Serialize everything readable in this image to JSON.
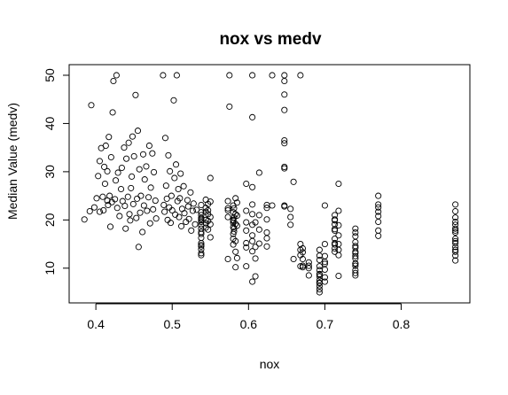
{
  "chart_data": {
    "type": "scatter",
    "title": "nox vs medv",
    "xlabel": "nox",
    "ylabel": "Median Value (medv)",
    "xlim": [
      0.365,
      0.89
    ],
    "ylim": [
      2.8,
      52.2
    ],
    "x_ticks": [
      0.4,
      0.5,
      0.6,
      0.7,
      0.8
    ],
    "x_tick_labels": [
      "0.4",
      "0.5",
      "0.6",
      "0.7",
      "0.8"
    ],
    "y_ticks": [
      10,
      20,
      30,
      40,
      50
    ],
    "y_tick_labels": [
      "10",
      "20",
      "30",
      "40",
      "50"
    ],
    "marker": "open-circle",
    "grid": false,
    "legend": "none",
    "points": [
      [
        0.385,
        20.1
      ],
      [
        0.392,
        21.8
      ],
      [
        0.394,
        43.8
      ],
      [
        0.398,
        22.6
      ],
      [
        0.401,
        24.5
      ],
      [
        0.403,
        29.1
      ],
      [
        0.405,
        32.2
      ],
      [
        0.405,
        21.7
      ],
      [
        0.407,
        34.9
      ],
      [
        0.409,
        24.8
      ],
      [
        0.41,
        22.0
      ],
      [
        0.411,
        31.0
      ],
      [
        0.412,
        27.5
      ],
      [
        0.413,
        35.4
      ],
      [
        0.415,
        24.0
      ],
      [
        0.415,
        30.1
      ],
      [
        0.416,
        23.1
      ],
      [
        0.417,
        37.2
      ],
      [
        0.418,
        25.0
      ],
      [
        0.419,
        18.6
      ],
      [
        0.42,
        33.0
      ],
      [
        0.421,
        23.7
      ],
      [
        0.422,
        42.3
      ],
      [
        0.423,
        48.8
      ],
      [
        0.425,
        24.3
      ],
      [
        0.426,
        28.2
      ],
      [
        0.427,
        50.0
      ],
      [
        0.428,
        22.5
      ],
      [
        0.429,
        29.8
      ],
      [
        0.431,
        20.8
      ],
      [
        0.433,
        26.4
      ],
      [
        0.434,
        30.8
      ],
      [
        0.435,
        23.9
      ],
      [
        0.437,
        35.0
      ],
      [
        0.438,
        22.9
      ],
      [
        0.439,
        18.2
      ],
      [
        0.44,
        32.7
      ],
      [
        0.442,
        24.8
      ],
      [
        0.443,
        36.0
      ],
      [
        0.444,
        21.2
      ],
      [
        0.445,
        19.9
      ],
      [
        0.446,
        26.6
      ],
      [
        0.447,
        29.0
      ],
      [
        0.448,
        37.3
      ],
      [
        0.449,
        23.3
      ],
      [
        0.45,
        33.2
      ],
      [
        0.452,
        45.9
      ],
      [
        0.453,
        20.4
      ],
      [
        0.454,
        24.4
      ],
      [
        0.455,
        38.5
      ],
      [
        0.456,
        14.4
      ],
      [
        0.457,
        30.5
      ],
      [
        0.458,
        21.5
      ],
      [
        0.459,
        25.0
      ],
      [
        0.461,
        17.5
      ],
      [
        0.462,
        33.6
      ],
      [
        0.463,
        23.0
      ],
      [
        0.464,
        28.4
      ],
      [
        0.466,
        31.1
      ],
      [
        0.467,
        21.9
      ],
      [
        0.469,
        24.7
      ],
      [
        0.47,
        35.4
      ],
      [
        0.471,
        19.3
      ],
      [
        0.472,
        26.7
      ],
      [
        0.474,
        33.8
      ],
      [
        0.475,
        22.2
      ],
      [
        0.476,
        29.9
      ],
      [
        0.478,
        24.0
      ],
      [
        0.479,
        20.3
      ],
      [
        0.488,
        50.0
      ],
      [
        0.489,
        23.1
      ],
      [
        0.49,
        21.7
      ],
      [
        0.491,
        37.0
      ],
      [
        0.492,
        27.1
      ],
      [
        0.493,
        24.4
      ],
      [
        0.494,
        20.0
      ],
      [
        0.495,
        33.4
      ],
      [
        0.496,
        22.6
      ],
      [
        0.497,
        30.1
      ],
      [
        0.498,
        19.4
      ],
      [
        0.499,
        25.0
      ],
      [
        0.5,
        22.0
      ],
      [
        0.502,
        44.8
      ],
      [
        0.503,
        28.7
      ],
      [
        0.504,
        21.1
      ],
      [
        0.505,
        31.5
      ],
      [
        0.506,
        50.0
      ],
      [
        0.507,
        23.9
      ],
      [
        0.508,
        26.4
      ],
      [
        0.509,
        20.6
      ],
      [
        0.51,
        24.5
      ],
      [
        0.511,
        29.6
      ],
      [
        0.512,
        18.7
      ],
      [
        0.513,
        22.3
      ],
      [
        0.515,
        27.0
      ],
      [
        0.516,
        21.4
      ],
      [
        0.518,
        19.6
      ],
      [
        0.52,
        24.1
      ],
      [
        0.521,
        22.8
      ],
      [
        0.522,
        20.2
      ],
      [
        0.524,
        25.7
      ],
      [
        0.525,
        17.8
      ],
      [
        0.527,
        21.9
      ],
      [
        0.528,
        23.4
      ],
      [
        0.53,
        19.1
      ],
      [
        0.532,
        22.1
      ],
      [
        0.538,
        21.6
      ],
      [
        0.538,
        18.2
      ],
      [
        0.538,
        15.2
      ],
      [
        0.538,
        19.9
      ],
      [
        0.538,
        13.1
      ],
      [
        0.538,
        14.5
      ],
      [
        0.538,
        20.4
      ],
      [
        0.538,
        17.5
      ],
      [
        0.538,
        12.7
      ],
      [
        0.538,
        16.3
      ],
      [
        0.538,
        23.1
      ],
      [
        0.538,
        19.6
      ],
      [
        0.538,
        14.8
      ],
      [
        0.538,
        21.0
      ],
      [
        0.538,
        18.9
      ],
      [
        0.538,
        13.9
      ],
      [
        0.538,
        20.2
      ],
      [
        0.538,
        17.1
      ],
      [
        0.544,
        22.5
      ],
      [
        0.544,
        20.0
      ],
      [
        0.544,
        18.4
      ],
      [
        0.544,
        21.7
      ],
      [
        0.544,
        24.2
      ],
      [
        0.544,
        19.3
      ],
      [
        0.547,
        21.2
      ],
      [
        0.547,
        18.0
      ],
      [
        0.547,
        23.3
      ],
      [
        0.547,
        19.8
      ],
      [
        0.547,
        22.0
      ],
      [
        0.55,
        23.8
      ],
      [
        0.55,
        20.6
      ],
      [
        0.55,
        28.7
      ],
      [
        0.55,
        16.4
      ],
      [
        0.55,
        19.1
      ],
      [
        0.573,
        23.9
      ],
      [
        0.573,
        22.0
      ],
      [
        0.573,
        20.6
      ],
      [
        0.573,
        22.4
      ],
      [
        0.573,
        11.9
      ],
      [
        0.575,
        50.0
      ],
      [
        0.575,
        43.5
      ],
      [
        0.58,
        17.1
      ],
      [
        0.58,
        19.4
      ],
      [
        0.58,
        21.6
      ],
      [
        0.58,
        23.0
      ],
      [
        0.58,
        18.5
      ],
      [
        0.58,
        14.9
      ],
      [
        0.58,
        20.0
      ],
      [
        0.58,
        16.1
      ],
      [
        0.58,
        19.8
      ],
      [
        0.581,
        22.4
      ],
      [
        0.581,
        18.2
      ],
      [
        0.581,
        20.5
      ],
      [
        0.581,
        17.6
      ],
      [
        0.583,
        24.5
      ],
      [
        0.583,
        10.2
      ],
      [
        0.583,
        13.4
      ],
      [
        0.583,
        19.2
      ],
      [
        0.583,
        21.2
      ],
      [
        0.583,
        15.6
      ],
      [
        0.585,
        23.6
      ],
      [
        0.585,
        20.9
      ],
      [
        0.585,
        18.8
      ],
      [
        0.585,
        12.1
      ],
      [
        0.597,
        17.8
      ],
      [
        0.597,
        15.2
      ],
      [
        0.597,
        27.5
      ],
      [
        0.597,
        19.5
      ],
      [
        0.597,
        10.4
      ],
      [
        0.597,
        21.9
      ],
      [
        0.597,
        14.3
      ],
      [
        0.605,
        50.0
      ],
      [
        0.605,
        41.3
      ],
      [
        0.605,
        26.8
      ],
      [
        0.605,
        23.2
      ],
      [
        0.605,
        21.2
      ],
      [
        0.605,
        19.0
      ],
      [
        0.605,
        16.8
      ],
      [
        0.605,
        15.6
      ],
      [
        0.605,
        13.5
      ],
      [
        0.605,
        7.2
      ],
      [
        0.609,
        14.4
      ],
      [
        0.609,
        8.3
      ],
      [
        0.609,
        19.5
      ],
      [
        0.609,
        12.0
      ],
      [
        0.614,
        18.0
      ],
      [
        0.614,
        21.0
      ],
      [
        0.614,
        15.1
      ],
      [
        0.614,
        29.8
      ],
      [
        0.624,
        23.1
      ],
      [
        0.624,
        20.1
      ],
      [
        0.624,
        17.4
      ],
      [
        0.624,
        14.5
      ],
      [
        0.624,
        22.5
      ],
      [
        0.624,
        16.2
      ],
      [
        0.631,
        50.0
      ],
      [
        0.631,
        23.0
      ],
      [
        0.647,
        50.0
      ],
      [
        0.647,
        48.8
      ],
      [
        0.647,
        46.0
      ],
      [
        0.647,
        42.8
      ],
      [
        0.647,
        36.5
      ],
      [
        0.647,
        35.9
      ],
      [
        0.647,
        31.0
      ],
      [
        0.647,
        30.7
      ],
      [
        0.647,
        22.8
      ],
      [
        0.647,
        23.0
      ],
      [
        0.655,
        22.3
      ],
      [
        0.655,
        20.6
      ],
      [
        0.655,
        19.0
      ],
      [
        0.659,
        27.9
      ],
      [
        0.659,
        11.9
      ],
      [
        0.668,
        50.0
      ],
      [
        0.668,
        15.0
      ],
      [
        0.668,
        13.8
      ],
      [
        0.668,
        10.4
      ],
      [
        0.668,
        12.7
      ],
      [
        0.671,
        13.3
      ],
      [
        0.671,
        10.2
      ],
      [
        0.671,
        11.9
      ],
      [
        0.671,
        10.5
      ],
      [
        0.671,
        14.1
      ],
      [
        0.679,
        8.5
      ],
      [
        0.679,
        10.5
      ],
      [
        0.679,
        11.2
      ],
      [
        0.679,
        10.0
      ],
      [
        0.693,
        13.8
      ],
      [
        0.693,
        11.7
      ],
      [
        0.693,
        9.6
      ],
      [
        0.693,
        8.7
      ],
      [
        0.693,
        7.5
      ],
      [
        0.693,
        6.3
      ],
      [
        0.693,
        5.0
      ],
      [
        0.693,
        7.0
      ],
      [
        0.693,
        8.3
      ],
      [
        0.693,
        10.4
      ],
      [
        0.693,
        12.6
      ],
      [
        0.693,
        8.8
      ],
      [
        0.693,
        5.6
      ],
      [
        0.693,
        6.9
      ],
      [
        0.7,
        23.0
      ],
      [
        0.7,
        15.0
      ],
      [
        0.7,
        12.5
      ],
      [
        0.7,
        10.9
      ],
      [
        0.7,
        9.7
      ],
      [
        0.7,
        8.1
      ],
      [
        0.7,
        7.2
      ],
      [
        0.7,
        11.3
      ],
      [
        0.713,
        19.1
      ],
      [
        0.713,
        20.1
      ],
      [
        0.713,
        21.0
      ],
      [
        0.713,
        14.1
      ],
      [
        0.713,
        16.1
      ],
      [
        0.713,
        17.8
      ],
      [
        0.713,
        13.4
      ],
      [
        0.713,
        15.2
      ],
      [
        0.713,
        19.9
      ],
      [
        0.713,
        18.1
      ],
      [
        0.713,
        14.9
      ],
      [
        0.718,
        27.5
      ],
      [
        0.718,
        21.9
      ],
      [
        0.718,
        8.4
      ],
      [
        0.718,
        13.8
      ],
      [
        0.718,
        12.7
      ],
      [
        0.718,
        15.0
      ],
      [
        0.718,
        18.9
      ],
      [
        0.718,
        16.8
      ],
      [
        0.74,
        18.2
      ],
      [
        0.74,
        16.6
      ],
      [
        0.74,
        14.6
      ],
      [
        0.74,
        13.4
      ],
      [
        0.74,
        12.0
      ],
      [
        0.74,
        11.0
      ],
      [
        0.74,
        9.6
      ],
      [
        0.74,
        8.5
      ],
      [
        0.74,
        13.1
      ],
      [
        0.74,
        10.5
      ],
      [
        0.74,
        15.4
      ],
      [
        0.74,
        17.4
      ],
      [
        0.74,
        14.2
      ],
      [
        0.74,
        12.5
      ],
      [
        0.74,
        10.9
      ],
      [
        0.74,
        9.0
      ],
      [
        0.77,
        25.0
      ],
      [
        0.77,
        23.2
      ],
      [
        0.77,
        21.7
      ],
      [
        0.77,
        20.8
      ],
      [
        0.77,
        19.6
      ],
      [
        0.77,
        17.8
      ],
      [
        0.77,
        16.7
      ],
      [
        0.77,
        22.6
      ],
      [
        0.871,
        23.2
      ],
      [
        0.871,
        21.8
      ],
      [
        0.871,
        20.5
      ],
      [
        0.871,
        19.6
      ],
      [
        0.871,
        18.2
      ],
      [
        0.871,
        17.4
      ],
      [
        0.871,
        16.1
      ],
      [
        0.871,
        15.2
      ],
      [
        0.871,
        14.4
      ],
      [
        0.871,
        13.4
      ],
      [
        0.871,
        12.6
      ],
      [
        0.871,
        11.6
      ],
      [
        0.871,
        15.6
      ],
      [
        0.871,
        17.8
      ],
      [
        0.871,
        19.0
      ],
      [
        0.871,
        13.8
      ]
    ]
  }
}
